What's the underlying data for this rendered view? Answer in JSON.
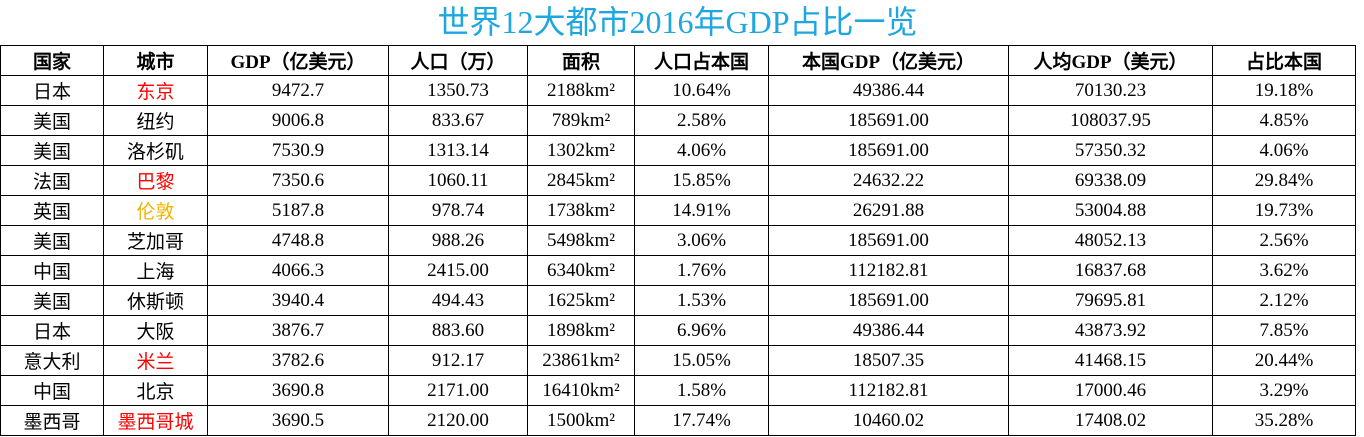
{
  "title": "世界12大都市2016年GDP占比一览",
  "table": {
    "header": [
      "国家",
      "城市",
      "GDP（亿美元）",
      "人口（万）",
      "面积",
      "人口占本国",
      "本国GDP（亿美元）",
      "人均GDP（美元）",
      "占比本国"
    ],
    "rows": [
      [
        "日本",
        "东京",
        "9472.7",
        "1350.73",
        "2188km²",
        "10.64%",
        "49386.44",
        "70130.23",
        "19.18%"
      ],
      [
        "美国",
        "纽约",
        "9006.8",
        "833.67",
        "789km²",
        "2.58%",
        "185691.00",
        "108037.95",
        "4.85%"
      ],
      [
        "美国",
        "洛杉矶",
        "7530.9",
        "1313.14",
        "1302km²",
        "4.06%",
        "185691.00",
        "57350.32",
        "4.06%"
      ],
      [
        "法国",
        "巴黎",
        "7350.6",
        "1060.11",
        "2845km²",
        "15.85%",
        "24632.22",
        "69338.09",
        "29.84%"
      ],
      [
        "英国",
        "伦敦",
        "5187.8",
        "978.74",
        "1738km²",
        "14.91%",
        "26291.88",
        "53004.88",
        "19.73%"
      ],
      [
        "美国",
        "芝加哥",
        "4748.8",
        "988.26",
        "5498km²",
        "3.06%",
        "185691.00",
        "48052.13",
        "2.56%"
      ],
      [
        "中国",
        "上海",
        "4066.3",
        "2415.00",
        "6340km²",
        "1.76%",
        "112182.81",
        "16837.68",
        "3.62%"
      ],
      [
        "美国",
        "休斯顿",
        "3940.4",
        "494.43",
        "1625km²",
        "1.53%",
        "185691.00",
        "79695.81",
        "2.12%"
      ],
      [
        "日本",
        "大阪",
        "3876.7",
        "883.60",
        "1898km²",
        "6.96%",
        "49386.44",
        "43873.92",
        "7.85%"
      ],
      [
        "意大利",
        "米兰",
        "3782.6",
        "912.17",
        "23861km²",
        "15.05%",
        "18507.35",
        "41468.15",
        "20.44%"
      ],
      [
        "中国",
        "北京",
        "3690.8",
        "2171.00",
        "16410km²",
        "1.58%",
        "112182.81",
        "17000.46",
        "3.29%"
      ],
      [
        "墨西哥",
        "墨西哥城",
        "3690.5",
        "2120.00",
        "1500km²",
        "17.74%",
        "10460.02",
        "17408.02",
        "35.28%"
      ]
    ],
    "city_colors": [
      "#ff0000",
      "#000000",
      "#000000",
      "#ff0000",
      "#f0b400",
      "#000000",
      "#000000",
      "#000000",
      "#000000",
      "#ff0000",
      "#000000",
      "#ff0000"
    ]
  }
}
